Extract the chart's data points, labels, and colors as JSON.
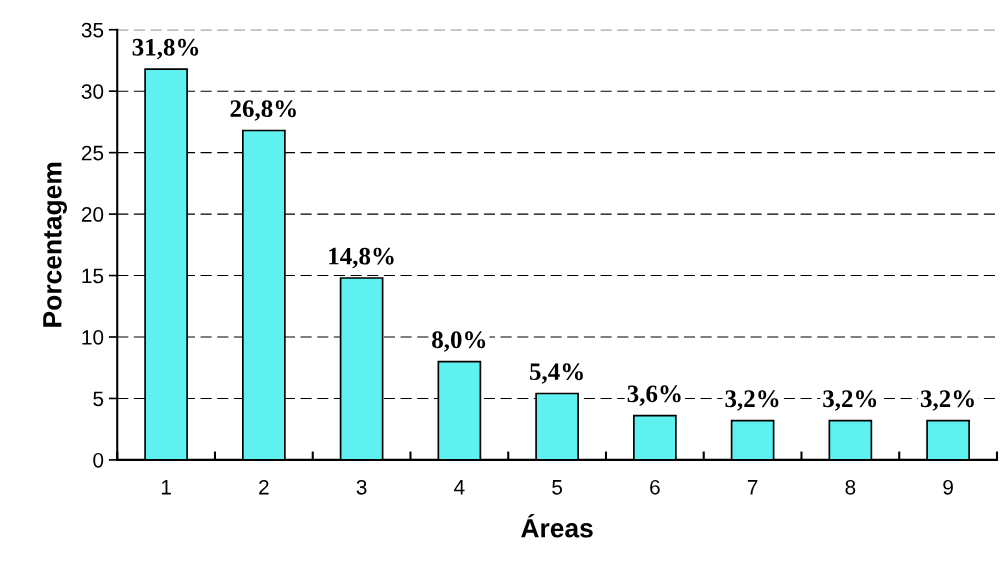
{
  "chart_data": {
    "type": "bar",
    "xlabel": "Áreas",
    "ylabel": "Porcentagem",
    "categories": [
      "1",
      "2",
      "3",
      "4",
      "5",
      "6",
      "7",
      "8",
      "9"
    ],
    "values": [
      31.8,
      26.8,
      14.8,
      8.0,
      5.4,
      3.6,
      3.2,
      3.2,
      3.2
    ],
    "value_labels": [
      "31,8%",
      "26,8%",
      "14,8%",
      "8,0%",
      "5,4%",
      "3,6%",
      "3,2%",
      "3,2%",
      "3,2%"
    ],
    "color": "#5ff0f0",
    "ylim": [
      0,
      35
    ],
    "yticks": [
      0,
      5,
      10,
      15,
      20,
      25,
      30,
      35
    ],
    "grid": "y"
  }
}
